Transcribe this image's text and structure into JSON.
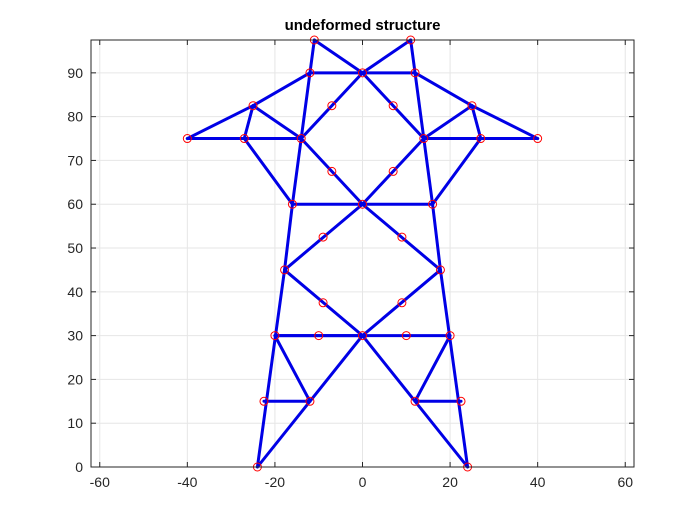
{
  "chart_data": {
    "type": "line",
    "title": "undeformed structure",
    "xlabel": "",
    "ylabel": "",
    "xlim": [
      -62,
      62
    ],
    "ylim": [
      0,
      97.5
    ],
    "xticks": [
      -60,
      -40,
      -20,
      0,
      20,
      40,
      60
    ],
    "yticks": [
      0,
      10,
      20,
      30,
      40,
      50,
      60,
      70,
      80,
      90
    ],
    "xtick_labels": [
      "-60",
      "-40",
      "-20",
      "0",
      "20",
      "40",
      "60"
    ],
    "ytick_labels": [
      "0",
      "10",
      "20",
      "30",
      "40",
      "50",
      "60",
      "70",
      "80",
      "90"
    ],
    "grid": true,
    "member_color": "#0000e6",
    "node_color": "#ff0000",
    "grid_color": "#e6e6e6",
    "axis_color": "#262626",
    "members": [
      [
        [
          -24,
          0
        ],
        [
          -17.8,
          45
        ]
      ],
      [
        [
          24,
          0
        ],
        [
          17.8,
          45
        ]
      ],
      [
        [
          -24,
          0
        ],
        [
          0,
          30
        ]
      ],
      [
        [
          24,
          0
        ],
        [
          0,
          30
        ]
      ],
      [
        [
          -22.5,
          15
        ],
        [
          -12,
          15
        ]
      ],
      [
        [
          12,
          15
        ],
        [
          22.5,
          15
        ]
      ],
      [
        [
          -12,
          15
        ],
        [
          -20,
          30
        ]
      ],
      [
        [
          12,
          15
        ],
        [
          20,
          30
        ]
      ],
      [
        [
          -20,
          30
        ],
        [
          20,
          30
        ]
      ],
      [
        [
          -20,
          30
        ],
        [
          0,
          30
        ]
      ],
      [
        [
          -17.8,
          45
        ],
        [
          0,
          30
        ]
      ],
      [
        [
          17.8,
          45
        ],
        [
          0,
          30
        ]
      ],
      [
        [
          -17.8,
          45
        ],
        [
          0,
          60
        ]
      ],
      [
        [
          17.8,
          45
        ],
        [
          0,
          60
        ]
      ],
      [
        [
          -17.8,
          45
        ],
        [
          -16,
          60
        ]
      ],
      [
        [
          17.8,
          45
        ],
        [
          16,
          60
        ]
      ],
      [
        [
          -16,
          60
        ],
        [
          16,
          60
        ]
      ],
      [
        [
          -16,
          60
        ],
        [
          -14,
          75
        ]
      ],
      [
        [
          16,
          60
        ],
        [
          14,
          75
        ]
      ],
      [
        [
          -14,
          75
        ],
        [
          0,
          60
        ]
      ],
      [
        [
          14,
          75
        ],
        [
          0,
          60
        ]
      ],
      [
        [
          -27,
          75
        ],
        [
          -16,
          60
        ]
      ],
      [
        [
          27,
          75
        ],
        [
          16,
          60
        ]
      ],
      [
        [
          -40,
          75
        ],
        [
          -14,
          75
        ]
      ],
      [
        [
          14,
          75
        ],
        [
          40,
          75
        ]
      ],
      [
        [
          -40,
          75
        ],
        [
          -25,
          82.5
        ]
      ],
      [
        [
          40,
          75
        ],
        [
          25,
          82.5
        ]
      ],
      [
        [
          -27,
          75
        ],
        [
          -25,
          82.5
        ]
      ],
      [
        [
          27,
          75
        ],
        [
          25,
          82.5
        ]
      ],
      [
        [
          -25,
          82.5
        ],
        [
          -14,
          75
        ]
      ],
      [
        [
          25,
          82.5
        ],
        [
          14,
          75
        ]
      ],
      [
        [
          -25,
          82.5
        ],
        [
          -12,
          90
        ]
      ],
      [
        [
          25,
          82.5
        ],
        [
          12,
          90
        ]
      ],
      [
        [
          -14,
          75
        ],
        [
          -12,
          90
        ]
      ],
      [
        [
          14,
          75
        ],
        [
          12,
          90
        ]
      ],
      [
        [
          -14,
          75
        ],
        [
          0,
          90
        ]
      ],
      [
        [
          14,
          75
        ],
        [
          0,
          90
        ]
      ],
      [
        [
          -12,
          90
        ],
        [
          12,
          90
        ]
      ],
      [
        [
          -12,
          90
        ],
        [
          -11,
          97.5
        ]
      ],
      [
        [
          12,
          90
        ],
        [
          11,
          97.5
        ]
      ],
      [
        [
          -11,
          97.5
        ],
        [
          0,
          90
        ]
      ],
      [
        [
          11,
          97.5
        ],
        [
          0,
          90
        ]
      ]
    ],
    "nodes": [
      [
        -24,
        0
      ],
      [
        24,
        0
      ],
      [
        -22.5,
        15
      ],
      [
        -12,
        15
      ],
      [
        12,
        15
      ],
      [
        22.5,
        15
      ],
      [
        -20,
        30
      ],
      [
        -10,
        30
      ],
      [
        0,
        30
      ],
      [
        10,
        30
      ],
      [
        20,
        30
      ],
      [
        -9,
        37.5
      ],
      [
        9,
        37.5
      ],
      [
        -17.8,
        45
      ],
      [
        17.8,
        45
      ],
      [
        -9,
        52.5
      ],
      [
        9,
        52.5
      ],
      [
        -16,
        60
      ],
      [
        0,
        60
      ],
      [
        16,
        60
      ],
      [
        -7,
        67.5
      ],
      [
        7,
        67.5
      ],
      [
        -40,
        75
      ],
      [
        -27,
        75
      ],
      [
        -14,
        75
      ],
      [
        14,
        75
      ],
      [
        27,
        75
      ],
      [
        40,
        75
      ],
      [
        -25,
        82.5
      ],
      [
        -7,
        82.5
      ],
      [
        7,
        82.5
      ],
      [
        25,
        82.5
      ],
      [
        -12,
        90
      ],
      [
        0,
        90
      ],
      [
        12,
        90
      ],
      [
        -11,
        97.5
      ],
      [
        11,
        97.5
      ]
    ]
  }
}
